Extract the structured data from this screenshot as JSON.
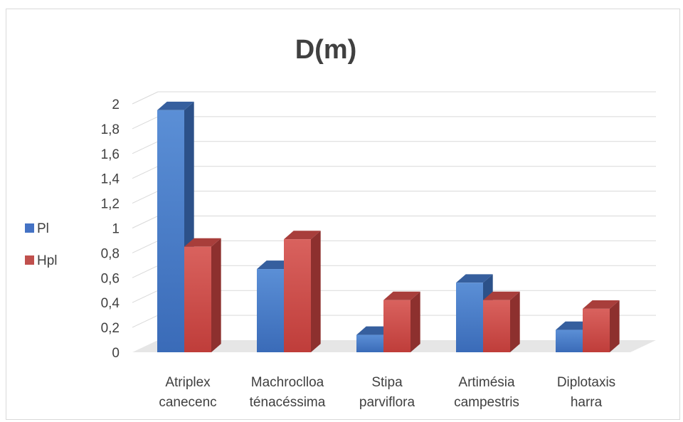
{
  "chart_data": {
    "type": "bar",
    "title": "D(m)",
    "categories": [
      [
        "Atriplex",
        "canecenc"
      ],
      [
        "Machroclloa",
        "ténacéssima"
      ],
      [
        "Stipa",
        "parviflora"
      ],
      [
        "Artimésia",
        "campestris"
      ],
      [
        "Diplotaxis",
        "harra"
      ]
    ],
    "series": [
      {
        "name": "Pl",
        "values": [
          1.95,
          0.67,
          0.14,
          0.56,
          0.18
        ],
        "color": "#4472c4"
      },
      {
        "name": "Hpl",
        "values": [
          0.85,
          0.91,
          0.42,
          0.42,
          0.35
        ],
        "color": "#c0504d"
      }
    ],
    "ylim": [
      0,
      2
    ],
    "yticks": [
      "0",
      "0,2",
      "0,4",
      "0,6",
      "0,8",
      "1",
      "1,2",
      "1,4",
      "1,6",
      "1,8",
      "2"
    ],
    "grid": true,
    "legend_position": "left",
    "bar_style": "3d-column"
  }
}
